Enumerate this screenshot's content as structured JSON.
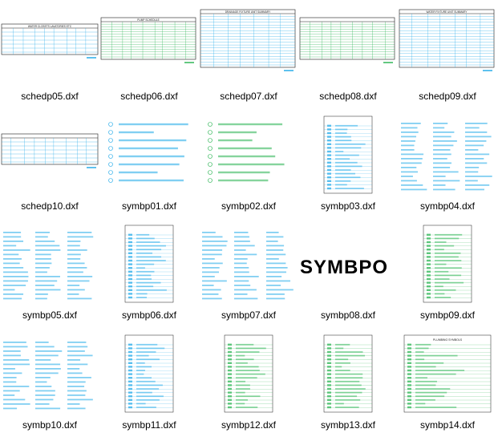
{
  "files": [
    {
      "name": "schedp05.dxf",
      "kind": "sched",
      "title": "WATER CLOSETS LAVATORIES ETC",
      "accent": "#1aa7e8"
    },
    {
      "name": "schedp06.dxf",
      "kind": "sched-green",
      "title": "PUMP SCHEDULE",
      "accent": "#22b14c"
    },
    {
      "name": "schedp07.dxf",
      "kind": "sched-big",
      "title": "DRAINAGE FIXTURE UNIT SUMMARY",
      "accent": "#1aa7e8"
    },
    {
      "name": "schedp08.dxf",
      "kind": "sched-green",
      "title": "",
      "accent": "#22b14c"
    },
    {
      "name": "schedp09.dxf",
      "kind": "sched-big",
      "title": "WATER FIXTURE UNIT SUMMARY",
      "accent": "#1aa7e8"
    },
    {
      "name": "schedp10.dxf",
      "kind": "sched",
      "title": "",
      "accent": "#1aa7e8"
    },
    {
      "name": "symbp01.dxf",
      "kind": "symb-list",
      "title": "",
      "accent": "#1aa7e8"
    },
    {
      "name": "symbp02.dxf",
      "kind": "symb-list-green",
      "title": "",
      "accent": "#22b14c"
    },
    {
      "name": "symbp03.dxf",
      "kind": "symb-col",
      "title": "",
      "accent": "#1aa7e8"
    },
    {
      "name": "symbp04.dxf",
      "kind": "symb-text",
      "title": "",
      "accent": "#1aa7e8"
    },
    {
      "name": "symbp05.dxf",
      "kind": "symb-text",
      "title": "",
      "accent": "#1aa7e8"
    },
    {
      "name": "symbp06.dxf",
      "kind": "symb-col",
      "title": "",
      "accent": "#1aa7e8"
    },
    {
      "name": "symbp07.dxf",
      "kind": "symb-text",
      "title": "",
      "accent": "#1aa7e8"
    },
    {
      "name": "symbp08.dxf",
      "kind": "big-text",
      "title": "SYMBPO",
      "accent": "#000000"
    },
    {
      "name": "symbp09.dxf",
      "kind": "symb-col",
      "title": "",
      "accent": "#22b14c"
    },
    {
      "name": "symbp10.dxf",
      "kind": "symb-text",
      "title": "",
      "accent": "#1aa7e8"
    },
    {
      "name": "symbp11.dxf",
      "kind": "symb-col",
      "title": "",
      "accent": "#1aa7e8"
    },
    {
      "name": "symbp12.dxf",
      "kind": "symb-col",
      "title": "",
      "accent": "#22b14c"
    },
    {
      "name": "symbp13.dxf",
      "kind": "symb-col",
      "title": "",
      "accent": "#22b14c"
    },
    {
      "name": "symbp14.dxf",
      "kind": "symb-col",
      "title": "PLUMBING SYMBOLS",
      "accent": "#22b14c"
    }
  ]
}
